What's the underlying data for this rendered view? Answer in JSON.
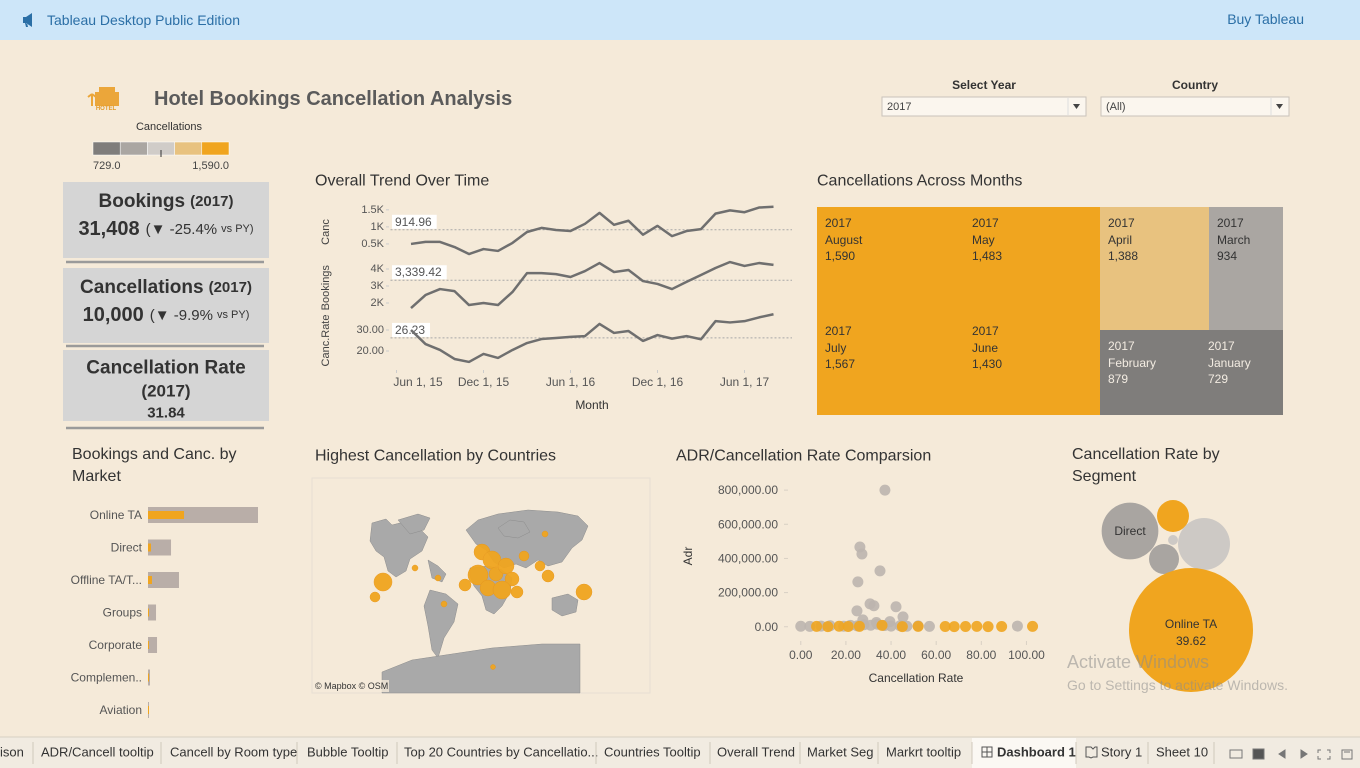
{
  "app_bar": {
    "title": "Tableau Desktop Public Edition",
    "action": "Buy Tableau"
  },
  "header": {
    "title": "Hotel Bookings Cancellation Analysis",
    "logo_text": "HOTEL"
  },
  "filters": [
    {
      "label": "Select Year",
      "value": "2017"
    },
    {
      "label": "Country",
      "value": "(All)"
    }
  ],
  "color_legend": {
    "title": "Cancellations",
    "colors": [
      "#7f7d7b",
      "#aaa6a2",
      "#d0ccc8",
      "#e8c27f",
      "#f0a51f"
    ],
    "range": [
      {
        "value": 729,
        "label": "729.0"
      },
      {
        "value": 1590,
        "label": "1,590.0"
      }
    ]
  },
  "kpis": [
    {
      "label": "Bookings",
      "year": "(2017)",
      "value": "31,408",
      "delta": "(▼ -25.4%",
      "suffix": "vs PY)"
    },
    {
      "label": "Cancellations",
      "year": "(2017)",
      "value": "10,000",
      "delta": "(▼ -9.9%",
      "suffix": "vs PY)"
    },
    {
      "label": "Cancellation Rate",
      "year": "(2017)",
      "value": "31.84"
    }
  ],
  "chart_data": [
    {
      "type": "line",
      "title": "Overall Trend Over Time",
      "x_label": "Month",
      "x": [
        "2015-07-01",
        "2015-08-01",
        "2015-09-01",
        "2015-10-01",
        "2015-11-01",
        "2015-12-01",
        "2016-01-01",
        "2016-02-01",
        "2016-03-01",
        "2016-04-01",
        "2016-05-01",
        "2016-06-01",
        "2016-07-01",
        "2016-08-01",
        "2016-09-01",
        "2016-10-01",
        "2016-11-01",
        "2016-12-01",
        "2017-01-01",
        "2017-02-01",
        "2017-03-01",
        "2017-04-01",
        "2017-05-01",
        "2017-06-01",
        "2017-07-01",
        "2017-08-01"
      ],
      "xlim": [
        "2015-06-01",
        "2017-09-01"
      ],
      "xticks": [
        {
          "value": "2015-06-01",
          "label": "Jun 1, 15"
        },
        {
          "value": "2015-12-01",
          "label": "Dec 1, 15"
        },
        {
          "value": "2016-06-01",
          "label": "Jun 1, 16"
        },
        {
          "value": "2016-12-01",
          "label": "Dec 1, 16"
        },
        {
          "value": "2017-06-01",
          "label": "Jun 1, 17"
        }
      ],
      "color": "#6f6f6f",
      "panels": [
        {
          "label": "Canc",
          "ylim": [
            0,
            1700
          ],
          "yticks": [
            {
              "value": 500,
              "label": "0.5K"
            },
            {
              "value": 1000,
              "label": "1K"
            },
            {
              "value": 1500,
              "label": "1.5K"
            }
          ],
          "reference": 914.96,
          "values": [
            500,
            560,
            560,
            410,
            205,
            350,
            295,
            530,
            850,
            970,
            910,
            880,
            1090,
            1410,
            1060,
            1180,
            770,
            1030,
            729,
            879,
            934,
            1388,
            1483,
            1430,
            1567,
            1590
          ]
        },
        {
          "label": "Bookings",
          "ylim": [
            1000,
            4800
          ],
          "yticks": [
            {
              "value": 2000,
              "label": "2K"
            },
            {
              "value": 3000,
              "label": "3K"
            },
            {
              "value": 4000,
              "label": "4K"
            }
          ],
          "reference": {
            "value": 3339.42,
            "label": "3,339.42"
          },
          "values": [
            1700,
            2470,
            2820,
            2700,
            1880,
            2000,
            1880,
            2650,
            3760,
            3760,
            3700,
            3530,
            3880,
            4350,
            3820,
            3940,
            3290,
            3120,
            2820,
            3240,
            3650,
            4060,
            4410,
            4180,
            4350,
            4240
          ]
        },
        {
          "label": "Canc.Rate",
          "ylim": [
            12,
            38
          ],
          "yticks": [
            {
              "value": 20,
              "label": "20.00"
            },
            {
              "value": 30,
              "label": "30.00"
            }
          ],
          "reference": 26.23,
          "values": [
            30.0,
            23.3,
            20.5,
            16.2,
            14.8,
            18.6,
            16.7,
            20.5,
            23.8,
            25.7,
            26.2,
            26.7,
            27.1,
            32.9,
            28.6,
            29.5,
            24.8,
            27.6,
            25.9,
            27.1,
            25.6,
            34.2,
            33.6,
            34.2,
            36.0,
            37.5
          ]
        }
      ]
    },
    {
      "type": "treemap",
      "title": "Cancellations Across Months",
      "years": [
        "2017",
        "2017",
        "2017",
        "2017",
        "2017",
        "2017",
        "2017",
        "2017"
      ],
      "categories": [
        "August",
        "May",
        "July",
        "June",
        "April",
        "March",
        "February",
        "January"
      ],
      "values": [
        1590,
        1483,
        1567,
        1430,
        1388,
        934,
        879,
        729
      ],
      "value_labels": [
        "1,590",
        "1,483",
        "1,567",
        "1,430",
        "1,388",
        "934",
        "879",
        "729"
      ]
    },
    {
      "type": "bar",
      "orientation": "horizontal",
      "title": "Bookings and Canc. by Market",
      "categories": [
        "Online TA",
        "Direct",
        "Offline TA/T...",
        "Groups",
        "Corporate",
        "Complemen..",
        "Aviation"
      ],
      "series": [
        {
          "color": "#b9aea8",
          "values": [
            18780,
            3930,
            5290,
            1370,
            1540,
            340,
            170
          ]
        },
        {
          "color": "#f0a51f",
          "values": [
            6150,
            510,
            680,
            170,
            170,
            30,
            20
          ]
        }
      ]
    },
    {
      "type": "map",
      "title": "Highest Cancellation by Countries",
      "attribution": "© Mapbox © OSM"
    },
    {
      "type": "scatter",
      "title": "ADR/Cancellation Rate Comparsion",
      "x_label": "Cancellation Rate",
      "y_label": "Adr",
      "xlim": [
        -3,
        106
      ],
      "xticks": [
        {
          "value": 0,
          "label": "0.00"
        },
        {
          "value": 20,
          "label": "20.00"
        },
        {
          "value": 40,
          "label": "40.00"
        },
        {
          "value": 60,
          "label": "60.00"
        },
        {
          "value": 80,
          "label": "80.00"
        },
        {
          "value": 100,
          "label": "100.00"
        }
      ],
      "ylim": [
        -60000,
        830000
      ],
      "yticks": [
        {
          "value": 0,
          "label": "0.00"
        },
        {
          "value": 200000,
          "label": "200,000.00"
        },
        {
          "value": 400000,
          "label": "400,000.00"
        },
        {
          "value": 600000,
          "label": "600,000.00"
        },
        {
          "value": 800000,
          "label": "800,000.00"
        }
      ],
      "series": [
        {
          "color": "#bdb5ae",
          "x": [
            0,
            4,
            9,
            13,
            19,
            22,
            25,
            28,
            31,
            34,
            37,
            40,
            44,
            47,
            52,
            57,
            96,
            37.3,
            26.2,
            27.1,
            25.3,
            35.1,
            24.9,
            30.7,
            32.4,
            42.2,
            45.3,
            39.5,
            33.5,
            27.5
          ],
          "values": [
            3000,
            2000,
            4000,
            6000,
            3000,
            8000,
            5000,
            12000,
            9000,
            15000,
            7000,
            4000,
            6000,
            3000,
            5000,
            2000,
            4000,
            800000,
            467000,
            426000,
            263000,
            327000,
            93000,
            134000,
            123000,
            117000,
            58000,
            30000,
            25000,
            40000
          ]
        },
        {
          "color": "#f0a51f",
          "x": [
            7,
            12,
            17,
            21,
            26,
            36,
            45,
            52,
            64,
            68,
            73,
            78,
            83,
            89,
            102.7
          ],
          "values": [
            2000,
            1000,
            3000,
            1500,
            2500,
            8000,
            1000,
            2000,
            1500,
            1000,
            1500,
            2000,
            1000,
            1500,
            2000
          ]
        }
      ]
    },
    {
      "type": "bubble",
      "title": "Cancellation Rate by Segment",
      "categories": [
        "Direct",
        null,
        null,
        null,
        null,
        "Online TA"
      ],
      "values": [
        15.4,
        36.5,
        18.1,
        17.2,
        12.0,
        39.62
      ],
      "sizes": [
        3930,
        1250,
        3300,
        1100,
        120,
        18780
      ],
      "colors": [
        "#a9a5a1",
        "#f0a51f",
        "#cdc9c5",
        "#a9a5a1",
        "#cdc9c5",
        "#f0a51f"
      ],
      "labeled_values": [
        5
      ]
    }
  ],
  "tabs": [
    "ison",
    "ADR/Cancell tooltip",
    "Cancell by Room type",
    "Bubble Tooltip",
    "Top 20 Countries by Cancellatio...",
    "Countries Tooltip",
    "Overall Trend",
    "Market Seg",
    "Markrt tooltip",
    "Dashboard 1",
    "Story 1",
    "Sheet 10"
  ],
  "active_tab": 9,
  "watermark": {
    "title": "Activate Windows",
    "text": "Go to Settings to activate Windows."
  }
}
